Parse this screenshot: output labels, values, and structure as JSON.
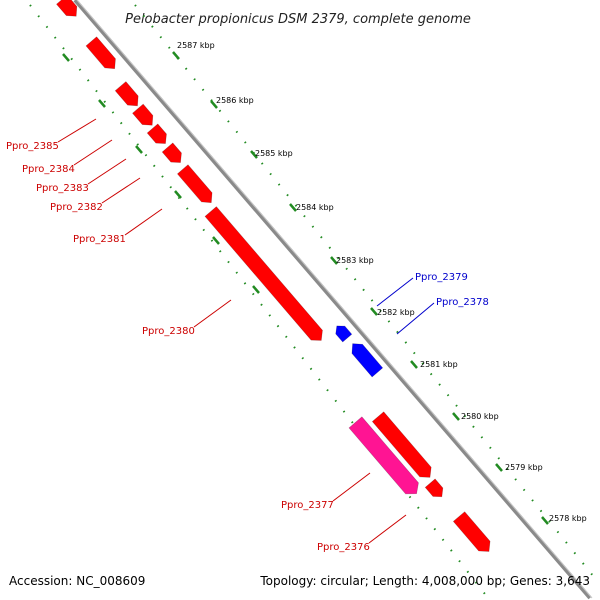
{
  "title": "Pelobacter propionicus DSM 2379, complete genome",
  "accession": "Accession: NC_008609",
  "topology": "Topology: circular; Length: 4,008,000 bp; Genes: 3,643",
  "colors": {
    "forward": "#ff0000",
    "reverse": "#0000ff",
    "rna": "#ff1493",
    "backbone": "#888888",
    "ticks": "#228b22",
    "forward_label": "#cc0000",
    "reverse_label": "#0000cc"
  },
  "kbp_labels": [
    "2587 kbp",
    "2586 kbp",
    "2585 kbp",
    "2584 kbp",
    "2583 kbp",
    "2582 kbp",
    "2581 kbp",
    "2580 kbp",
    "2579 kbp",
    "2578 kbp"
  ],
  "genes": [
    {
      "label": "Ppro_2385",
      "strand": "forward"
    },
    {
      "label": "Ppro_2384",
      "strand": "forward"
    },
    {
      "label": "Ppro_2383",
      "strand": "forward"
    },
    {
      "label": "Ppro_2382",
      "strand": "forward"
    },
    {
      "label": "Ppro_2381",
      "strand": "forward"
    },
    {
      "label": "Ppro_2380",
      "strand": "forward"
    },
    {
      "label": "Ppro_2379",
      "strand": "reverse"
    },
    {
      "label": "Ppro_2378",
      "strand": "reverse"
    },
    {
      "label": "Ppro_2377",
      "strand": "rna"
    },
    {
      "label": "Ppro_2376",
      "strand": "forward"
    }
  ]
}
